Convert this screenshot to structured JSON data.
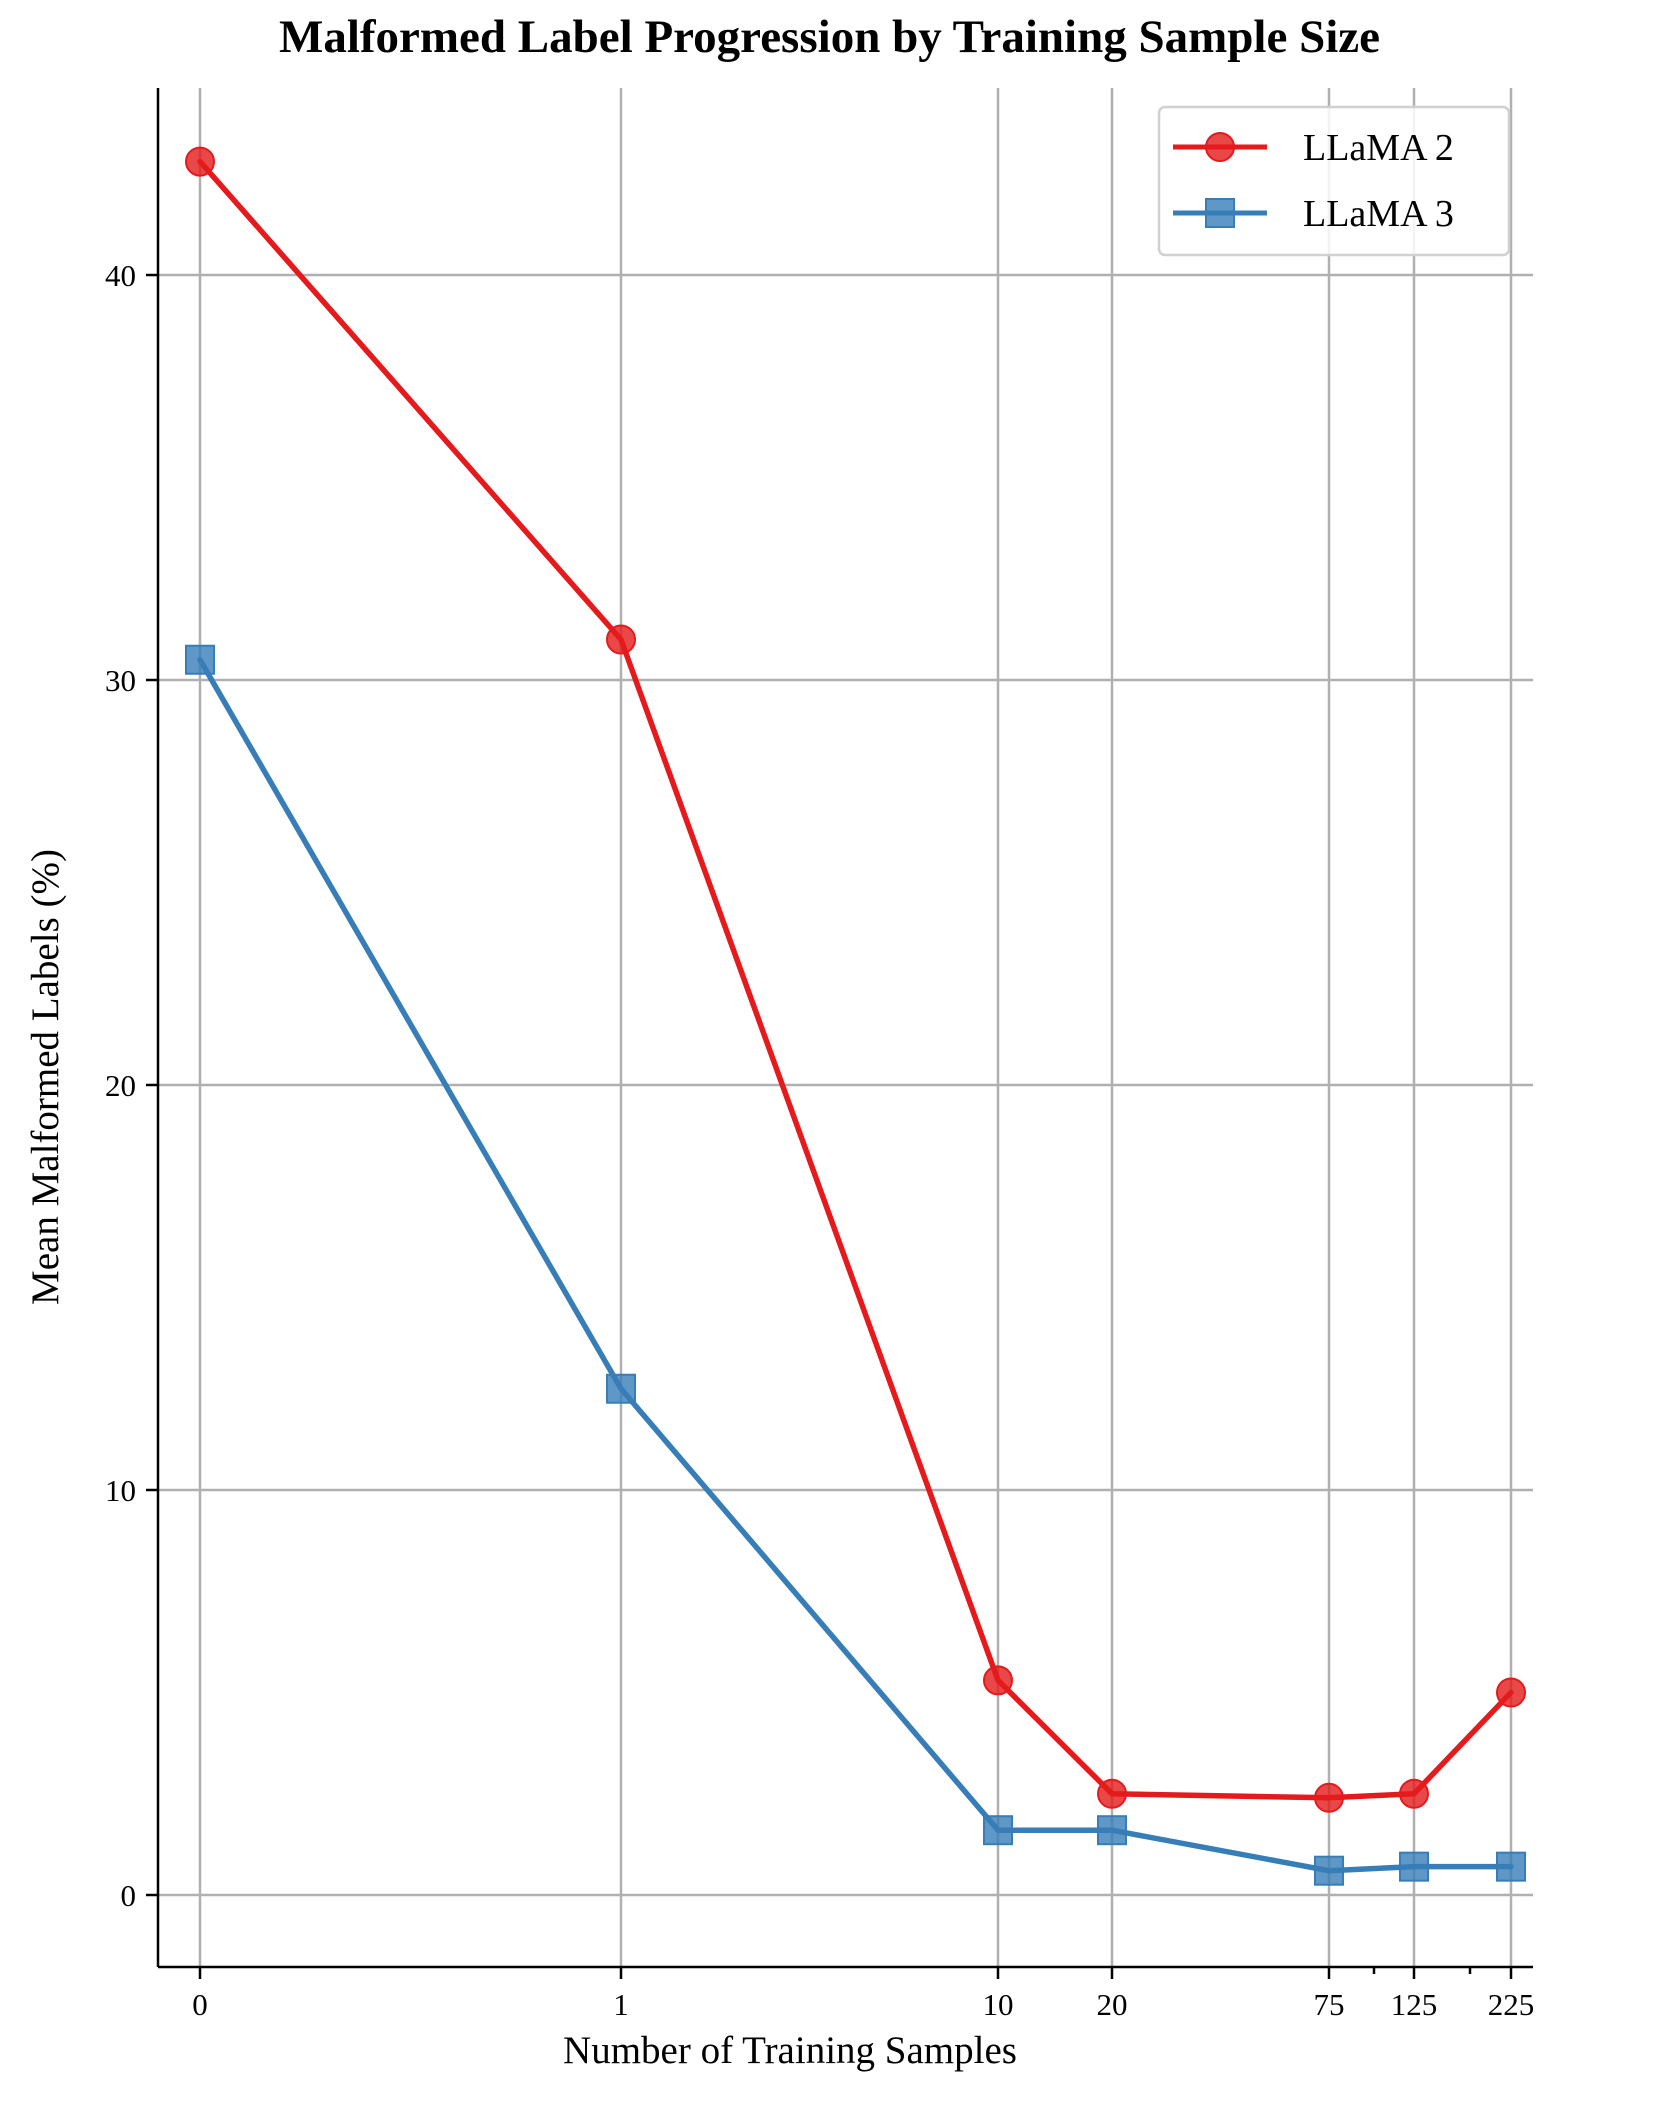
{
  "chart_data": {
    "type": "line",
    "title": "Malformed Label Progression by Training Sample Size",
    "xlabel": "Number of Training Samples",
    "ylabel": "Mean Malformed Labels (%)",
    "x_tick_labels": [
      "0",
      "1",
      "10",
      "20",
      "75",
      "125",
      "225"
    ],
    "x_tick_positions": [
      0,
      1,
      10,
      20,
      75,
      125,
      225
    ],
    "y_ticks": [
      0,
      10,
      20,
      30,
      40
    ],
    "ylim": [
      -1.5,
      45
    ],
    "grid": true,
    "legend_position": "top-right",
    "x": [
      0,
      1,
      10,
      20,
      75,
      125,
      225
    ],
    "series": [
      {
        "name": "LLaMA 2",
        "color": "#e41a1c",
        "marker": "circle",
        "values": [
          42.8,
          31.0,
          5.3,
          2.5,
          2.4,
          2.5,
          5.0
        ]
      },
      {
        "name": "LLaMA 3",
        "color": "#377eb8",
        "marker": "square",
        "values": [
          30.5,
          12.5,
          1.6,
          1.6,
          0.6,
          0.7,
          0.7
        ]
      }
    ]
  }
}
